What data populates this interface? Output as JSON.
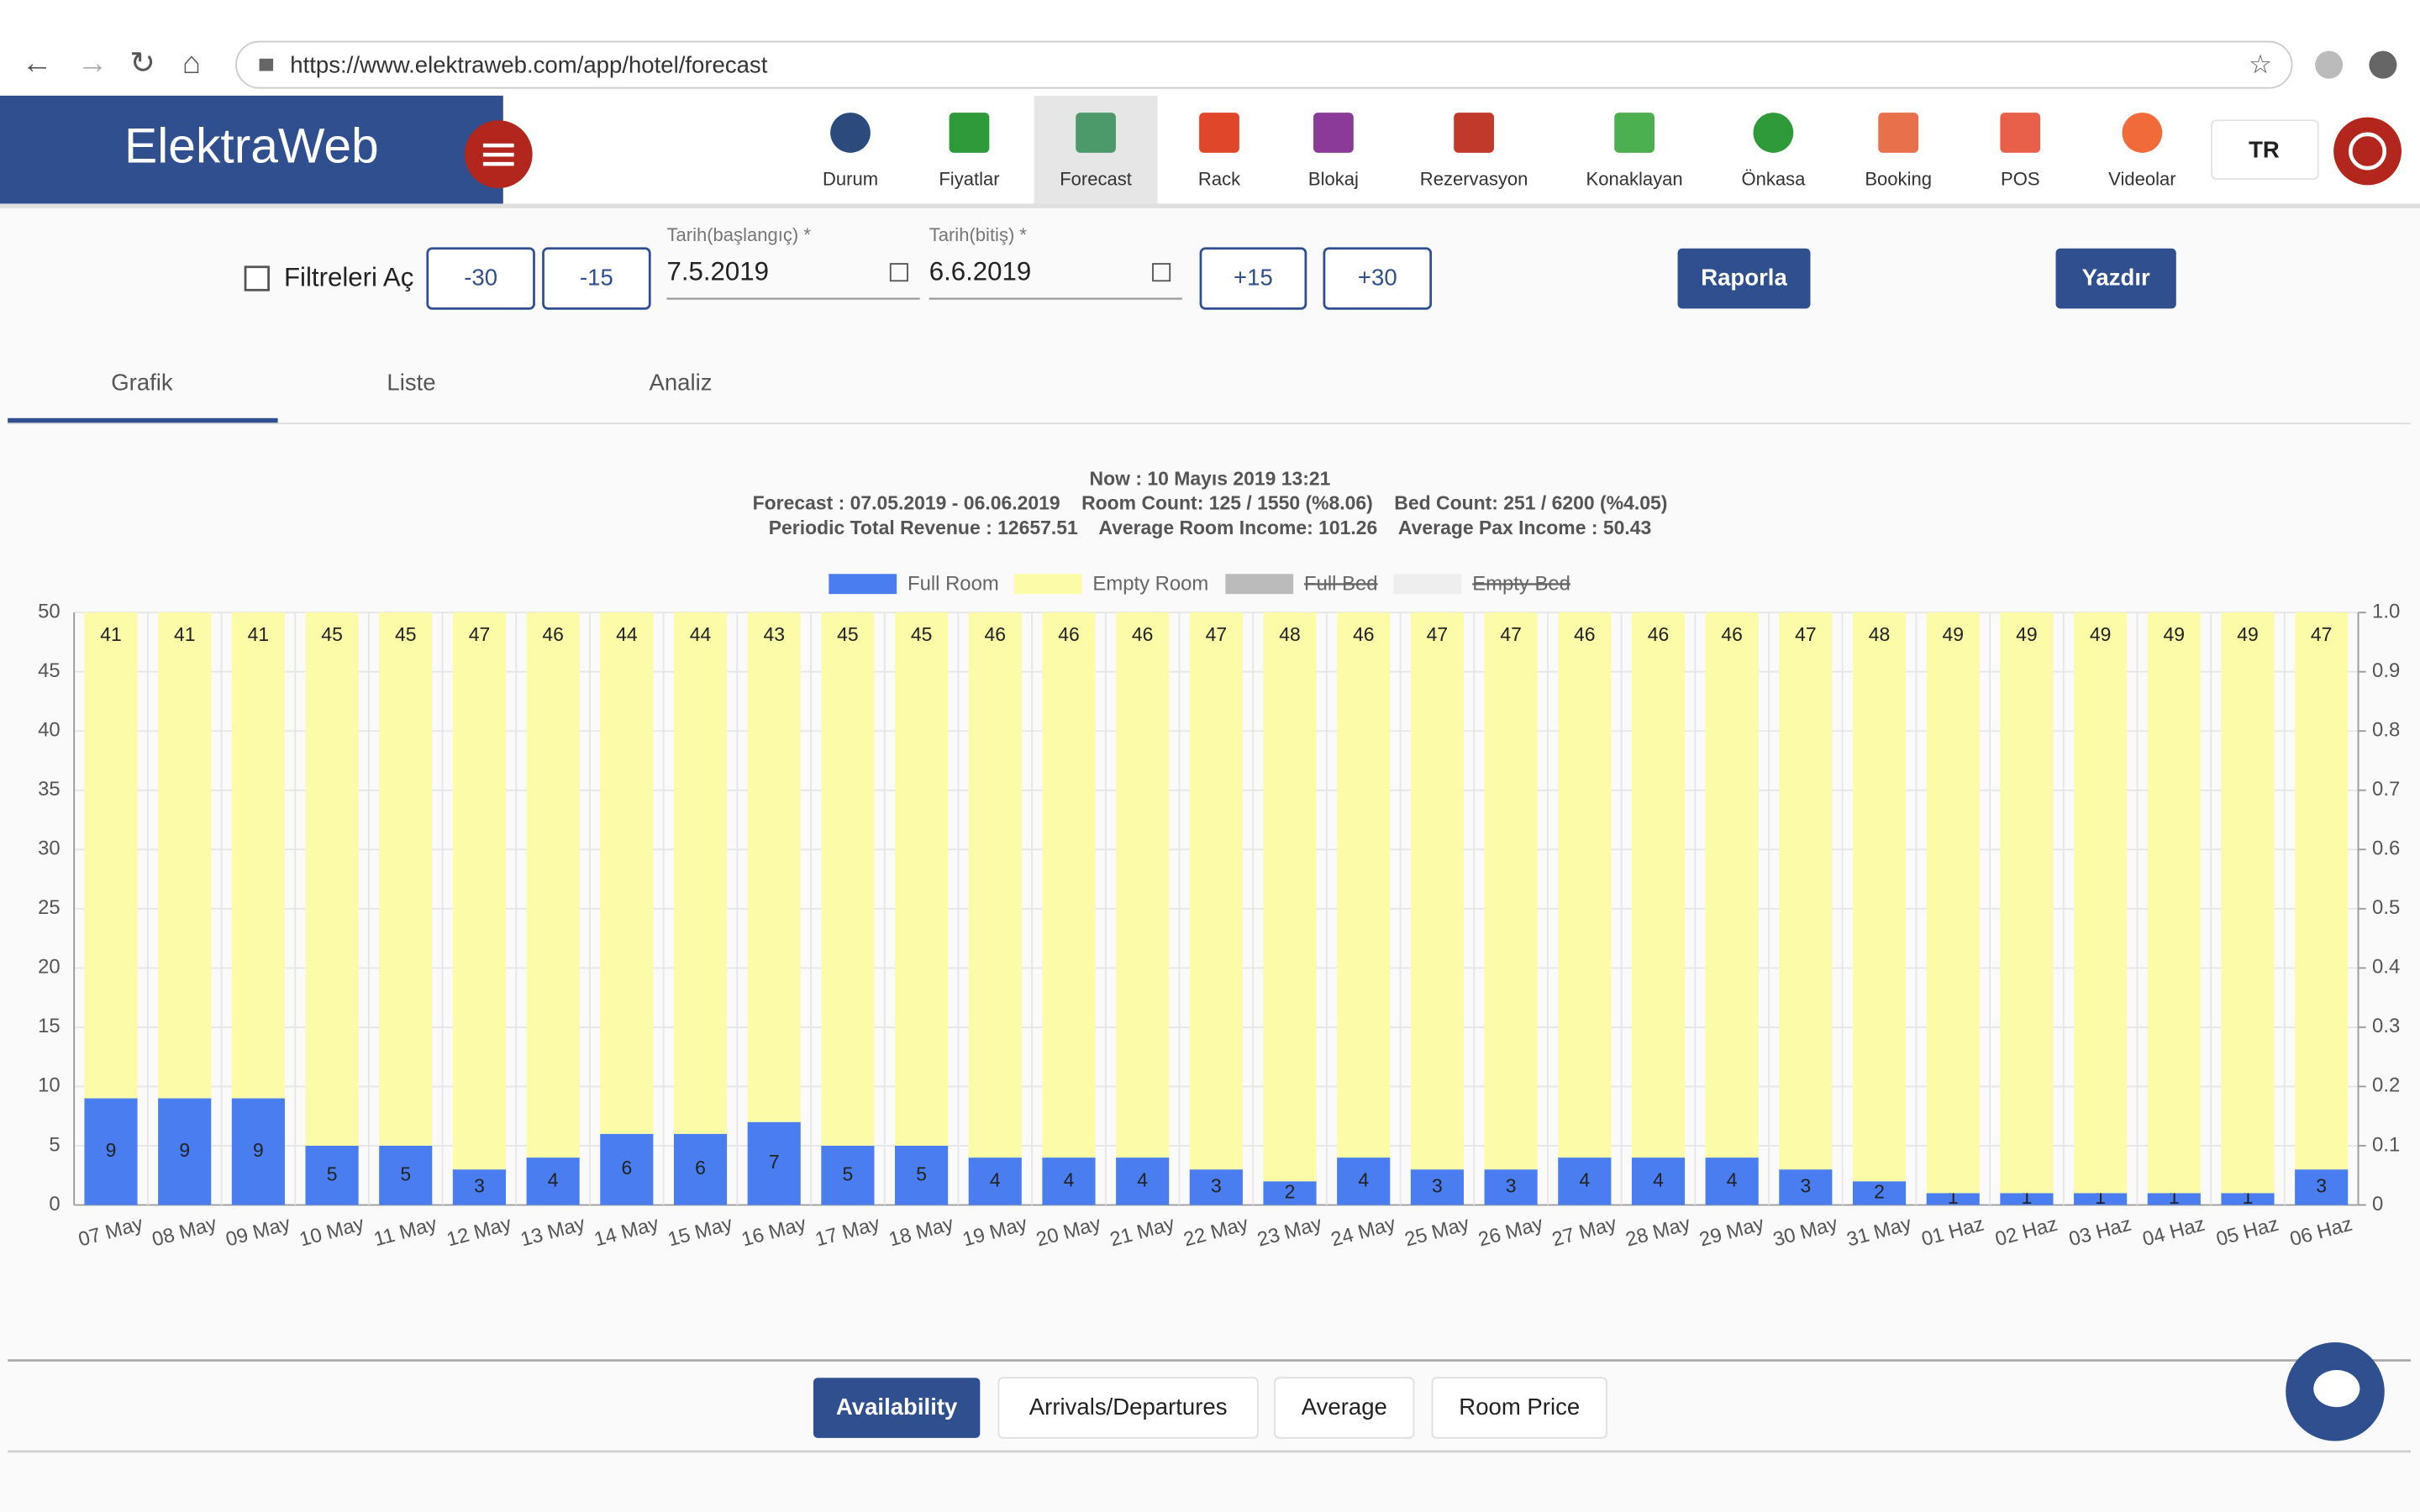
{
  "browser": {
    "url": "https://www.elektraweb.com/app/hotel/forecast"
  },
  "brand": "ElektraWeb",
  "nav": [
    "Durum",
    "Fiyatlar",
    "Forecast",
    "Rack",
    "Blokaj",
    "Rezervasyon",
    "Konaklayan",
    "Önkasa",
    "Booking",
    "POS",
    "Videolar"
  ],
  "language": "TR",
  "filters": {
    "toggle": "Filtreleri Aç",
    "minus30": "-30",
    "minus15": "-15",
    "start_label": "Tarih(başlangıç) *",
    "start": "7.5.2019",
    "end_label": "Tarih(bitiş) *",
    "end": "6.6.2019",
    "plus15": "+15",
    "plus30": "+30",
    "report": "Raporla",
    "print": "Yazdır"
  },
  "tabs": [
    "Grafik",
    "Liste",
    "Analiz"
  ],
  "bottom_tabs": [
    "Availability",
    "Arrivals/Departures",
    "Average",
    "Room Price"
  ],
  "chart_data": {
    "type": "bar",
    "stacked": true,
    "title_lines": [
      "Now : 10 Mayıs 2019 13:21",
      "Forecast : 07.05.2019 - 06.06.2019    Room Count: 125 / 1550 (%8.06)    Bed Count: 251 / 6200 (%4.05)",
      "Periodic Total Revenue : 12657.51    Average Room Income: 101.26    Average Pax Income : 50.43"
    ],
    "categories": [
      "07 May",
      "08 May",
      "09 May",
      "10 May",
      "11 May",
      "12 May",
      "13 May",
      "14 May",
      "15 May",
      "16 May",
      "17 May",
      "18 May",
      "19 May",
      "20 May",
      "21 May",
      "22 May",
      "23 May",
      "24 May",
      "25 May",
      "26 May",
      "27 May",
      "28 May",
      "29 May",
      "30 May",
      "31 May",
      "01 Haz",
      "02 Haz",
      "03 Haz",
      "04 Haz",
      "05 Haz",
      "06 Haz"
    ],
    "series": [
      {
        "name": "Full Room",
        "color": "#4a7ef0",
        "values": [
          9,
          9,
          9,
          5,
          5,
          3,
          4,
          6,
          6,
          7,
          5,
          5,
          4,
          4,
          4,
          3,
          2,
          4,
          3,
          3,
          4,
          4,
          4,
          3,
          2,
          1,
          1,
          1,
          1,
          1,
          3
        ]
      },
      {
        "name": "Empty Room",
        "color": "#fbfba8",
        "values": [
          41,
          41,
          41,
          45,
          45,
          47,
          46,
          44,
          44,
          43,
          45,
          45,
          46,
          46,
          46,
          47,
          48,
          46,
          47,
          47,
          46,
          46,
          46,
          47,
          48,
          49,
          49,
          49,
          49,
          49,
          47
        ]
      }
    ],
    "legend_hidden": [
      {
        "name": "Full Bed",
        "color": "#bbbbbb"
      },
      {
        "name": "Empty Bed",
        "color": "#eeeeee"
      }
    ],
    "ylim": [
      0,
      50
    ],
    "yticks": [
      0,
      5,
      10,
      15,
      20,
      25,
      30,
      35,
      40,
      45,
      50
    ],
    "y2lim": [
      0,
      1
    ],
    "y2ticks": [
      0,
      0.1,
      0.2,
      0.3,
      0.4,
      0.5,
      0.6,
      0.7,
      0.8,
      0.9,
      {
        "value": 1,
        "label": "1.0"
      }
    ],
    "grid": true
  }
}
